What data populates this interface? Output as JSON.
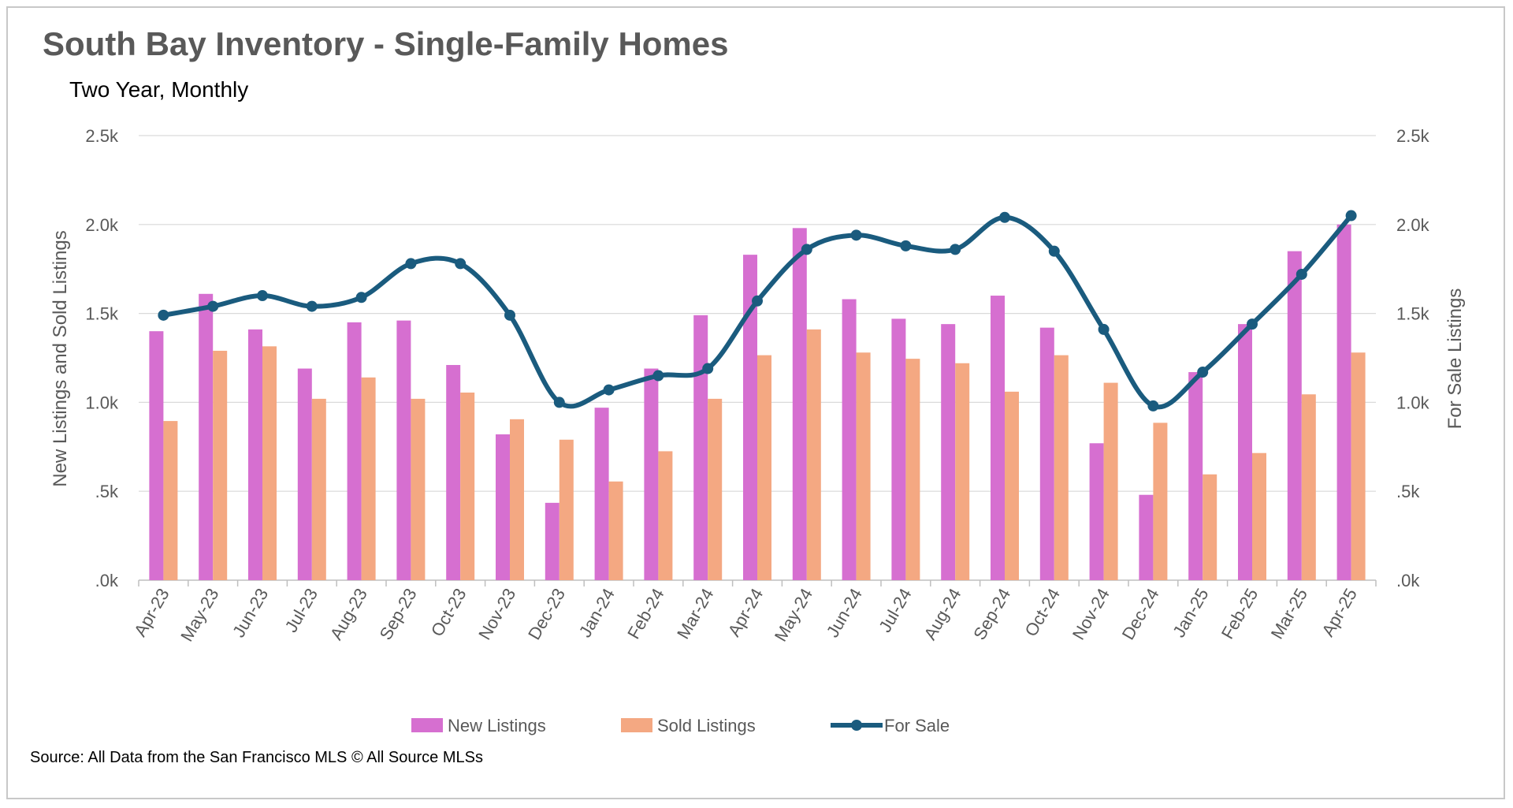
{
  "title": "South Bay Inventory - Single-Family Homes",
  "subtitle": "Two Year, Monthly",
  "source": "Source: All Data from the San Francisco MLS © All Source MLSs",
  "chart_data": {
    "type": "bar",
    "categories": [
      "Apr-23",
      "May-23",
      "Jun-23",
      "Jul-23",
      "Aug-23",
      "Sep-23",
      "Oct-23",
      "Nov-23",
      "Dec-23",
      "Jan-24",
      "Feb-24",
      "Mar-24",
      "Apr-24",
      "May-24",
      "Jun-24",
      "Jul-24",
      "Aug-24",
      "Sep-24",
      "Oct-24",
      "Nov-24",
      "Dec-24",
      "Jan-25",
      "Feb-25",
      "Mar-25",
      "Apr-25"
    ],
    "series": [
      {
        "name": "New Listings",
        "type": "bar",
        "axis": "left",
        "color": "#d66fd0",
        "values": [
          1400,
          1610,
          1410,
          1190,
          1450,
          1460,
          1210,
          820,
          435,
          970,
          1190,
          1490,
          1830,
          1980,
          1580,
          1470,
          1440,
          1600,
          1420,
          770,
          480,
          1170,
          1440,
          1850,
          2000
        ]
      },
      {
        "name": "Sold Listings",
        "type": "bar",
        "axis": "left",
        "color": "#f4a882",
        "values": [
          895,
          1290,
          1315,
          1020,
          1140,
          1020,
          1055,
          905,
          790,
          555,
          725,
          1020,
          1265,
          1410,
          1280,
          1245,
          1220,
          1060,
          1265,
          1110,
          885,
          595,
          715,
          1045,
          1280
        ]
      },
      {
        "name": "For Sale",
        "type": "line",
        "axis": "right",
        "color": "#1a5b7e",
        "values": [
          1490,
          1540,
          1600,
          1540,
          1590,
          1780,
          1780,
          1490,
          1000,
          1070,
          1150,
          1190,
          1570,
          1860,
          1940,
          1880,
          1860,
          2040,
          1850,
          1410,
          980,
          1170,
          1440,
          1720,
          2050
        ]
      }
    ],
    "ylabel_left": "New Listings and Sold Listings",
    "ylabel_right": "For Sale Listings",
    "ylim": [
      0,
      2500
    ],
    "yticks": [
      ".0k",
      ".5k",
      "1.0k",
      "1.5k",
      "2.0k",
      "2.5k"
    ],
    "grid": true,
    "legend_position": "bottom"
  }
}
